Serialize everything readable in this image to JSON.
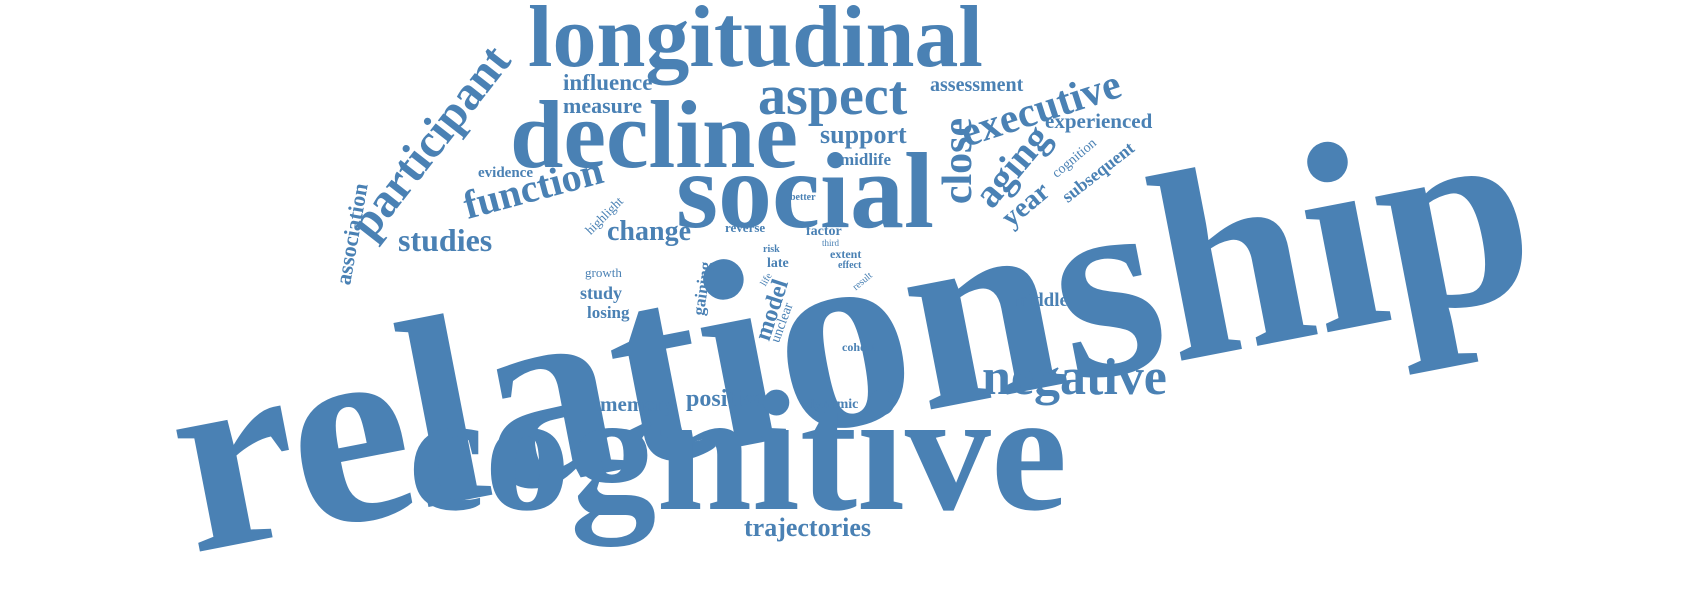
{
  "colors": {
    "word": "#4a81b4",
    "background": "#ffffff"
  },
  "words": [
    "relationship",
    "cognitive",
    "social",
    "decline",
    "longitudinal",
    "negative",
    "aspect",
    "participant",
    "executive",
    "function",
    "close",
    "aging",
    "studies",
    "association",
    "change",
    "year",
    "model",
    "support",
    "influence",
    "measure",
    "assessment",
    "experienced",
    "trajectories",
    "positive",
    "memory",
    "middle",
    "midlife",
    "subsequent",
    "cognition",
    "evidence",
    "highlight",
    "study",
    "losing",
    "gaining",
    "unclear",
    "growth",
    "reverse",
    "better",
    "factor",
    "third",
    "extent",
    "effect",
    "result",
    "risk",
    "late",
    "life",
    "cohort",
    "dynamic"
  ]
}
